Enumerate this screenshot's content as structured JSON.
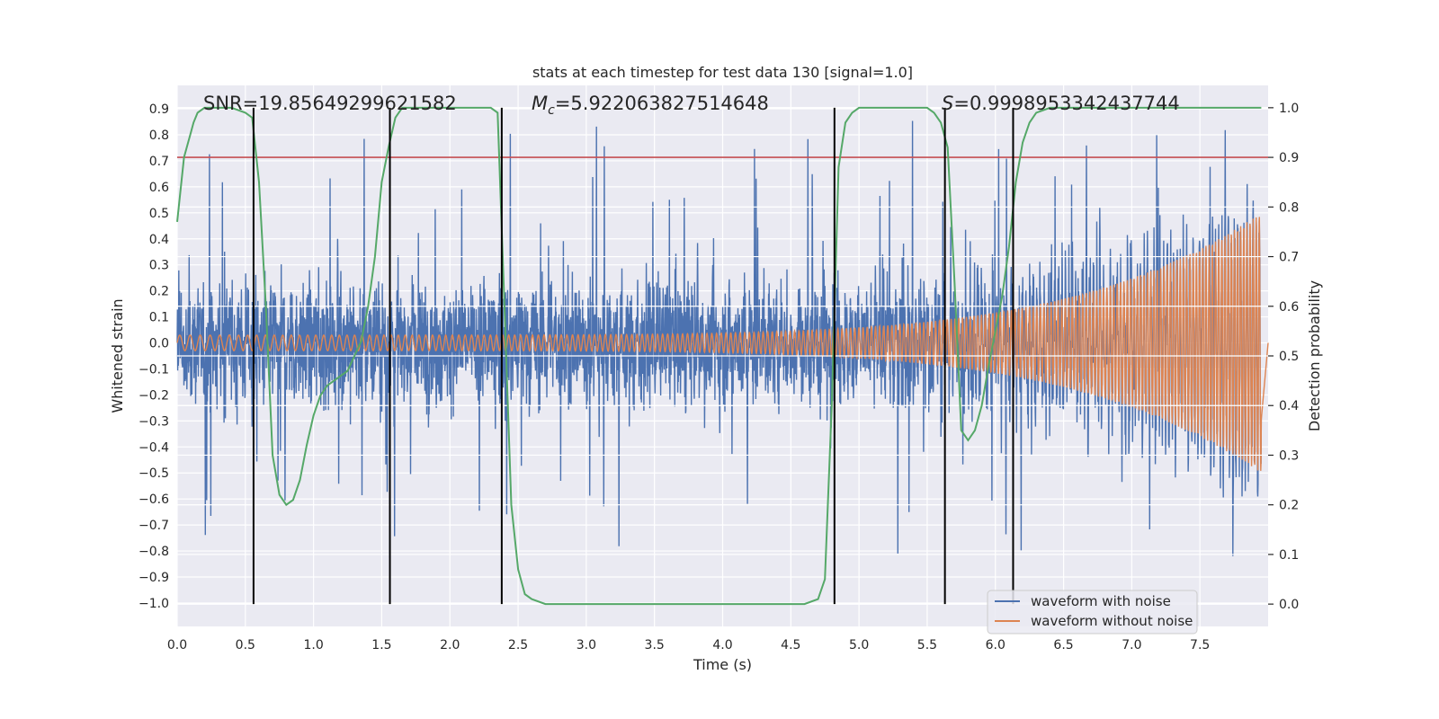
{
  "chart_data": {
    "type": "line",
    "title": "stats at each timestep for test data 130 [signal=1.0]",
    "xlabel": "Time (s)",
    "ylabel_left": "Whitened strain",
    "ylabel_right": "Detection probability",
    "xlim": [
      0.0,
      8.0
    ],
    "ylim_left": [
      -1.09,
      0.99
    ],
    "ylim_right": [
      -0.045,
      1.045
    ],
    "x_ticks": [
      "0.0",
      "0.5",
      "1.0",
      "1.5",
      "2.0",
      "2.5",
      "3.0",
      "3.5",
      "4.0",
      "4.5",
      "5.0",
      "5.5",
      "6.0",
      "6.5",
      "7.0",
      "7.5"
    ],
    "x_tick_values": [
      0.0,
      0.5,
      1.0,
      1.5,
      2.0,
      2.5,
      3.0,
      3.5,
      4.0,
      4.5,
      5.0,
      5.5,
      6.0,
      6.5,
      7.0,
      7.5
    ],
    "y_left_ticks": [
      "0.9",
      "0.8",
      "0.7",
      "0.6",
      "0.5",
      "0.4",
      "0.3",
      "0.2",
      "0.1",
      "0.0",
      "−0.1",
      "−0.2",
      "−0.3",
      "−0.4",
      "−0.5",
      "−0.6",
      "−0.7",
      "−0.8",
      "−0.9",
      "−1.0"
    ],
    "y_left_tick_values": [
      0.9,
      0.8,
      0.7,
      0.6,
      0.5,
      0.4,
      0.3,
      0.2,
      0.1,
      0.0,
      -0.1,
      -0.2,
      -0.3,
      -0.4,
      -0.5,
      -0.6,
      -0.7,
      -0.8,
      -0.9,
      -1.0
    ],
    "y_right_ticks": [
      "1.0",
      "0.9",
      "0.8",
      "0.7",
      "0.6",
      "0.5",
      "0.4",
      "0.3",
      "0.2",
      "0.1",
      "0.0"
    ],
    "y_right_tick_values": [
      1.0,
      0.9,
      0.8,
      0.7,
      0.6,
      0.5,
      0.4,
      0.3,
      0.2,
      0.1,
      0.0
    ],
    "annotations": {
      "snr": "SNR=19.85649299621582",
      "mc_symbol": "M",
      "mc_sub": "c",
      "mc_value": "=5.922063827514648",
      "s_symbol": "S",
      "s_value": "=0.9998953342437744"
    },
    "threshold_line": {
      "axis": "right",
      "value": 0.9,
      "color": "#c44e52"
    },
    "vertical_lines_x": [
      0.56,
      1.56,
      2.38,
      4.82,
      5.63,
      6.13
    ],
    "series": [
      {
        "name": "waveform with noise",
        "color": "#4c72b0",
        "axis": "left",
        "description": "dense noisy whitened strain, envelope roughly ±0.5 with spikes up to 0.9 and down to -0.9"
      },
      {
        "name": "waveform without noise",
        "color": "#dd8452",
        "axis": "left",
        "description": "chirp signal, amplitude ~0.03 at t=0 growing to ~0.5 near t=7.95"
      },
      {
        "name": "detection probability",
        "color": "#55a868",
        "axis": "right",
        "x": [
          0.0,
          0.05,
          0.1,
          0.12,
          0.15,
          0.2,
          0.3,
          0.4,
          0.5,
          0.55,
          0.6,
          0.65,
          0.7,
          0.75,
          0.8,
          0.85,
          0.9,
          0.95,
          1.0,
          1.05,
          1.1,
          1.15,
          1.2,
          1.25,
          1.3,
          1.35,
          1.4,
          1.45,
          1.5,
          1.55,
          1.6,
          1.65,
          1.7,
          1.8,
          1.9,
          2.0,
          2.1,
          2.2,
          2.3,
          2.35,
          2.4,
          2.45,
          2.5,
          2.55,
          2.6,
          2.7,
          2.8,
          3.0,
          3.5,
          4.0,
          4.5,
          4.6,
          4.7,
          4.75,
          4.8,
          4.85,
          4.9,
          4.95,
          5.0,
          5.1,
          5.3,
          5.5,
          5.55,
          5.6,
          5.65,
          5.7,
          5.75,
          5.8,
          5.85,
          5.9,
          5.95,
          6.0,
          6.05,
          6.1,
          6.15,
          6.2,
          6.25,
          6.3,
          6.4,
          6.5,
          7.0,
          7.5,
          7.95
        ],
        "y": [
          0.77,
          0.9,
          0.95,
          0.97,
          0.99,
          1.0,
          1.0,
          1.0,
          0.99,
          0.98,
          0.85,
          0.6,
          0.3,
          0.22,
          0.2,
          0.21,
          0.25,
          0.32,
          0.38,
          0.42,
          0.44,
          0.45,
          0.46,
          0.47,
          0.5,
          0.53,
          0.6,
          0.7,
          0.85,
          0.92,
          0.98,
          1.0,
          1.0,
          1.0,
          1.0,
          1.0,
          1.0,
          1.0,
          1.0,
          0.99,
          0.6,
          0.2,
          0.07,
          0.02,
          0.01,
          0.0,
          0.0,
          0.0,
          0.0,
          0.0,
          0.0,
          0.0,
          0.01,
          0.05,
          0.4,
          0.88,
          0.97,
          0.99,
          1.0,
          1.0,
          1.0,
          1.0,
          0.99,
          0.97,
          0.92,
          0.65,
          0.35,
          0.33,
          0.35,
          0.4,
          0.48,
          0.55,
          0.62,
          0.72,
          0.85,
          0.93,
          0.97,
          0.99,
          1.0,
          1.0,
          1.0,
          1.0,
          1.0
        ]
      }
    ],
    "legend": {
      "position": "lower-right",
      "entries": [
        "waveform with noise",
        "waveform without noise"
      ]
    },
    "colors": {
      "background": "#eaeaf2",
      "grid": "#ffffff",
      "noise": "#4c72b0",
      "clean": "#dd8452",
      "prob": "#55a868",
      "threshold": "#c44e52",
      "vline": "#000000"
    }
  }
}
